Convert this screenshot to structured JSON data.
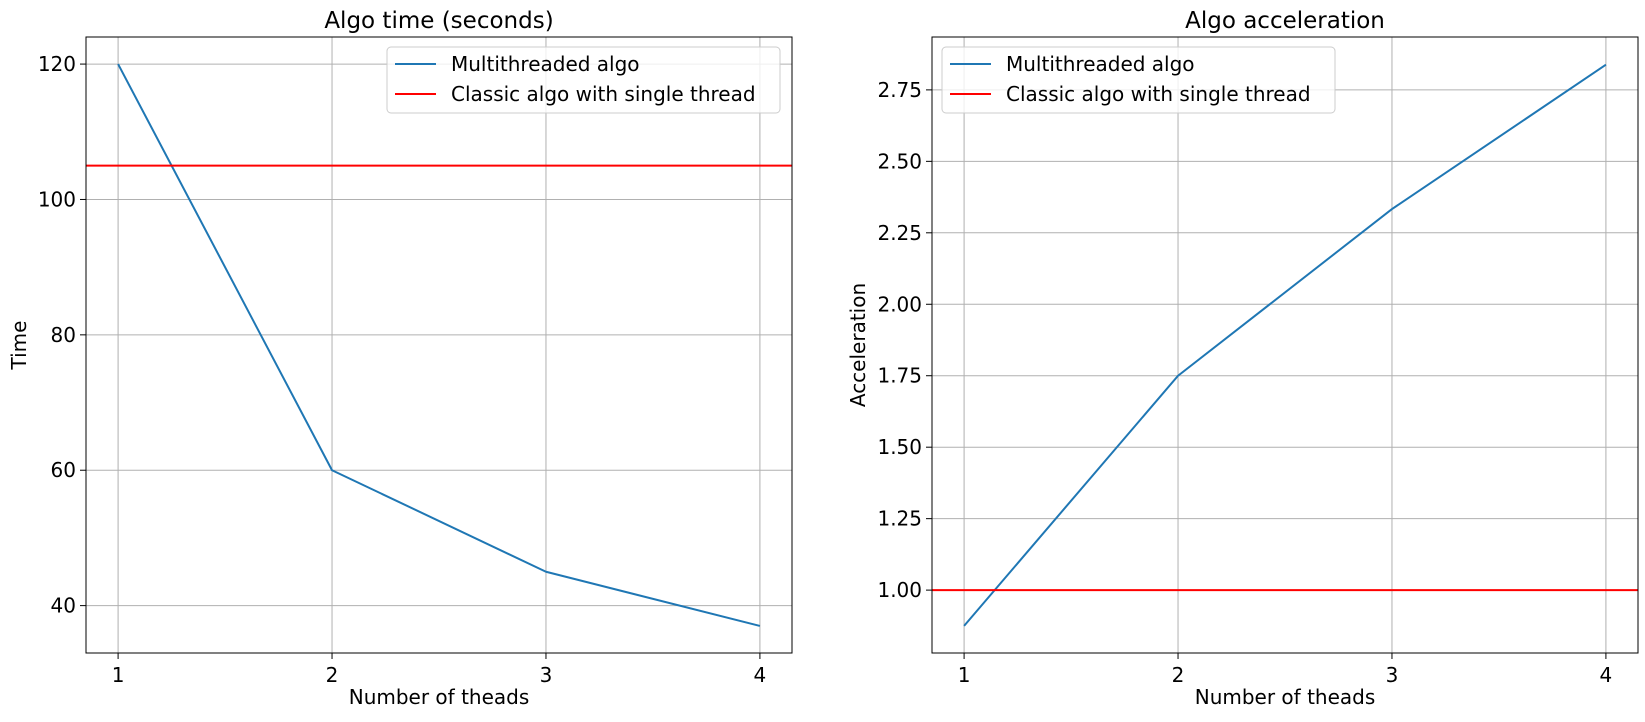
{
  "chart_data": [
    {
      "type": "line",
      "title": "Algo time (seconds)",
      "xlabel": "Number of theads",
      "ylabel": "Time",
      "x": [
        1,
        2,
        3,
        4
      ],
      "xticks": [
        "1",
        "2",
        "3",
        "4"
      ],
      "yticks": [
        "40",
        "60",
        "80",
        "100",
        "120"
      ],
      "xlim": [
        0.85,
        4.15
      ],
      "ylim": [
        33,
        124
      ],
      "grid": true,
      "legend_position": "top-right",
      "series": [
        {
          "name": "Multithreaded algo",
          "color": "#1f77b4",
          "kind": "line",
          "values": [
            120,
            60,
            45,
            37
          ]
        },
        {
          "name": "Classic algo with single thread",
          "color": "#ff0000",
          "kind": "hline",
          "value": 105
        }
      ]
    },
    {
      "type": "line",
      "title": "Algo acceleration",
      "xlabel": "Number of theads",
      "ylabel": "Acceleration",
      "x": [
        1,
        2,
        3,
        4
      ],
      "xticks": [
        "1",
        "2",
        "3",
        "4"
      ],
      "yticks": [
        "1.00",
        "1.25",
        "1.50",
        "1.75",
        "2.00",
        "2.25",
        "2.50",
        "2.75"
      ],
      "xlim": [
        0.85,
        4.15
      ],
      "ylim": [
        0.78,
        2.935
      ],
      "grid": true,
      "legend_position": "top-left",
      "series": [
        {
          "name": "Multithreaded algo",
          "color": "#1f77b4",
          "kind": "line",
          "values": [
            0.875,
            1.75,
            2.333,
            2.838
          ]
        },
        {
          "name": "Classic algo with single thread",
          "color": "#ff0000",
          "kind": "hline",
          "value": 1.0
        }
      ]
    }
  ]
}
